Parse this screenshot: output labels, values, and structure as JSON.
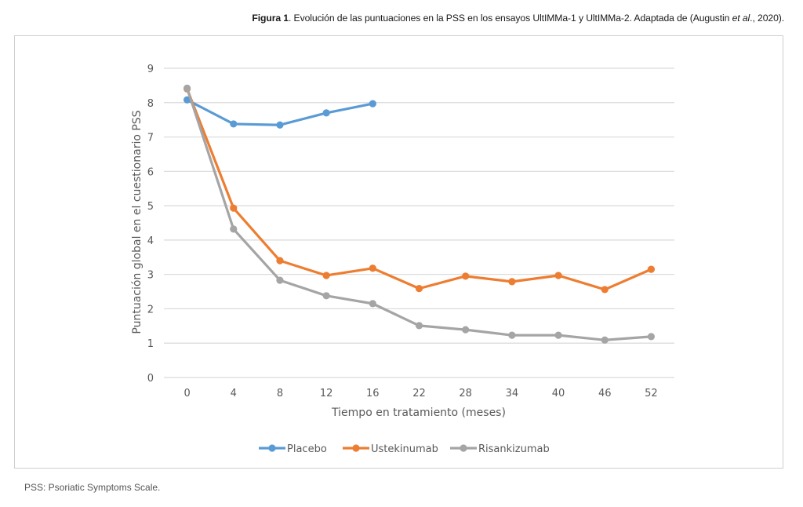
{
  "caption": {
    "label": "Figura 1",
    "text_before_italic": ". Evolución de las puntuaciones en la PSS en los ensayos UltIMMa-1 y UltIMMa-2. Adaptada de (Augustin ",
    "italic": "et al",
    "text_after_italic": "., 2020)."
  },
  "footnote": "PSS: Psoriatic Symptoms Scale.",
  "chart_data": {
    "type": "line",
    "title": "",
    "xlabel": "Tiempo en tratamiento (meses)",
    "ylabel": "Puntuación global en el cuestionario PSS",
    "categories": [
      "0",
      "4",
      "8",
      "12",
      "16",
      "22",
      "28",
      "34",
      "40",
      "46",
      "52"
    ],
    "ylim": [
      0,
      9
    ],
    "yticks": [
      "0",
      "1",
      "2",
      "3",
      "4",
      "5",
      "6",
      "7",
      "8",
      "9"
    ],
    "grid": true,
    "legend_position": "bottom",
    "series": [
      {
        "name": "Placebo",
        "color": "#5b9bd5",
        "values": [
          8.08,
          7.38,
          7.35,
          7.7,
          7.97,
          null,
          null,
          null,
          null,
          null,
          null
        ]
      },
      {
        "name": "Ustekinumab",
        "color": "#ed7d31",
        "values": [
          8.4,
          4.93,
          3.4,
          2.97,
          3.18,
          2.59,
          2.95,
          2.79,
          2.97,
          2.56,
          3.15
        ]
      },
      {
        "name": "Risankizumab",
        "color": "#a5a5a5",
        "values": [
          8.42,
          4.32,
          2.83,
          2.38,
          2.15,
          1.51,
          1.39,
          1.23,
          1.23,
          1.09,
          1.19
        ]
      }
    ]
  }
}
